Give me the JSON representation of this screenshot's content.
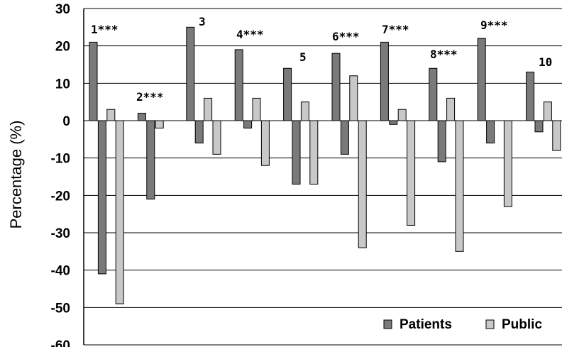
{
  "chart_data": {
    "type": "bar",
    "categories": [
      "1***",
      "2***",
      "3",
      "4***",
      "5",
      "6***",
      "7***",
      "8***",
      "9***",
      "10"
    ],
    "ylabel": "Percentage (%)",
    "ylim": [
      -60,
      30
    ],
    "yticks": [
      30,
      20,
      10,
      0,
      -10,
      -20,
      -30,
      -40,
      -50,
      -60
    ],
    "grid": true,
    "legend": "bottom-right",
    "series": [
      {
        "name": "Patients",
        "color": "#7a7a7a",
        "values": [
          [
            21,
            -41
          ],
          [
            2,
            -21
          ],
          [
            25,
            -6
          ],
          [
            19,
            -2
          ],
          [
            14,
            -17
          ],
          [
            18,
            -9
          ],
          [
            21,
            -1
          ],
          [
            14,
            -11
          ],
          [
            22,
            -6
          ],
          [
            13,
            -3
          ]
        ]
      },
      {
        "name": "Public",
        "color": "#c8c8c8",
        "values": [
          [
            3,
            -49
          ],
          [
            -2,
            null
          ],
          [
            6,
            -9
          ],
          [
            6,
            -12
          ],
          [
            5,
            -17
          ],
          [
            12,
            -34
          ],
          [
            3,
            -28
          ],
          [
            6,
            -35
          ],
          [
            null,
            -23
          ],
          [
            5,
            -8
          ]
        ]
      }
    ]
  }
}
